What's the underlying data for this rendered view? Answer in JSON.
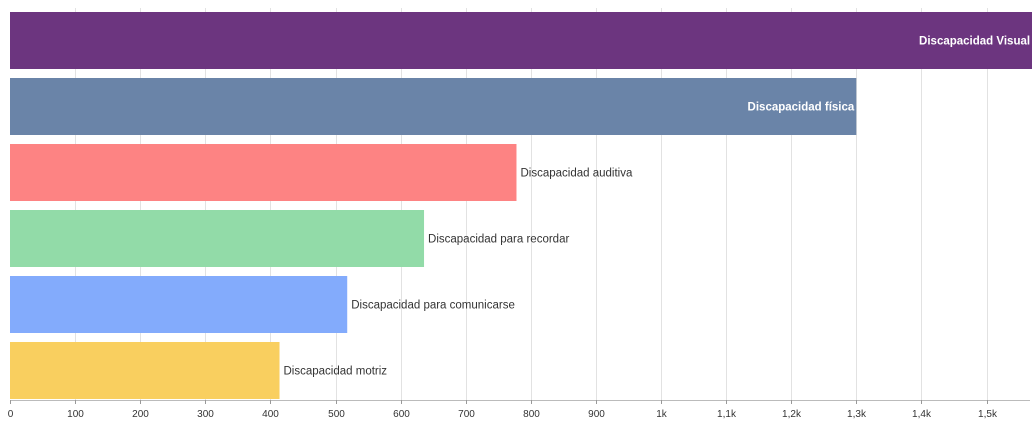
{
  "chart_data": {
    "type": "bar",
    "orientation": "horizontal",
    "title": "",
    "xlabel": "",
    "ylabel": "",
    "xlim": [
      0,
      1570
    ],
    "grid": true,
    "legend": "none",
    "tick_values": [
      0,
      100,
      200,
      300,
      400,
      500,
      600,
      700,
      800,
      900,
      1000,
      1100,
      1200,
      1300,
      1400,
      1500
    ],
    "tick_labels": [
      "0",
      "100",
      "200",
      "300",
      "400",
      "500",
      "600",
      "700",
      "800",
      "900",
      "1k",
      "1,1k",
      "1,2k",
      "1,3k",
      "1,4k",
      "1,5k"
    ],
    "categories": [
      "Discapacidad Visual",
      "Discapacidad física",
      "Discapacidad auditiva",
      "Discapacidad para recordar",
      "Discapacidad para comunicarse",
      "Discapacidad motriz"
    ],
    "values": [
      1570,
      1300,
      778,
      636,
      518,
      414
    ],
    "colors": [
      "#6c357f",
      "#6a84a8",
      "#fd8383",
      "#92dba8",
      "#83abfc",
      "#f9cf5f"
    ],
    "label_colors": [
      "#ffffff",
      "#ffffff",
      "#333333",
      "#333333",
      "#333333",
      "#333333"
    ],
    "label_inside": [
      true,
      true,
      false,
      false,
      false,
      false
    ]
  }
}
